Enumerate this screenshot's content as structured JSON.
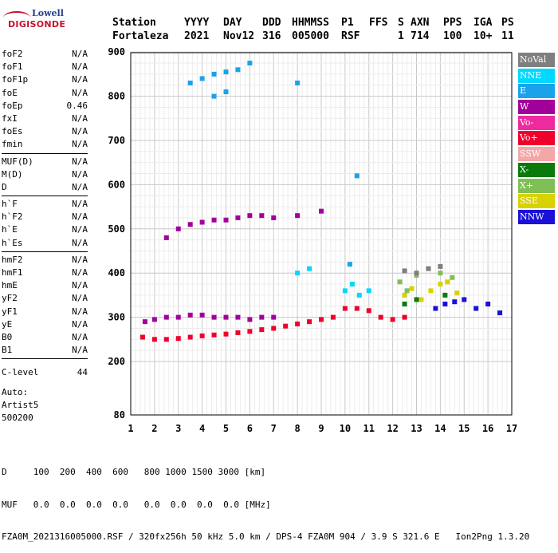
{
  "logo": {
    "line1": "Lowell",
    "line2": "DIGISONDE"
  },
  "header": {
    "row1": [
      "Station",
      "YYYY",
      "DAY",
      "DDD",
      "HHMMSS",
      "P1",
      "FFS",
      "S",
      "AXN",
      "PPS",
      "IGA",
      "PS"
    ],
    "row2": [
      "Fortaleza",
      "2021",
      "Nov12",
      "316",
      "005000",
      "RSF",
      "",
      "1",
      "714",
      "100",
      "10+",
      "11"
    ]
  },
  "params": {
    "group1": [
      {
        "k": "foF2",
        "v": "N/A"
      },
      {
        "k": "foF1",
        "v": "N/A"
      },
      {
        "k": "foF1p",
        "v": "N/A"
      },
      {
        "k": "foE",
        "v": "N/A"
      },
      {
        "k": "foEp",
        "v": "0.46"
      },
      {
        "k": "fxI",
        "v": "N/A"
      },
      {
        "k": "foEs",
        "v": "N/A"
      },
      {
        "k": "fmin",
        "v": "N/A"
      }
    ],
    "group2": [
      {
        "k": "MUF(D)",
        "v": "N/A"
      },
      {
        "k": "M(D)",
        "v": "N/A"
      },
      {
        "k": "D",
        "v": "N/A"
      }
    ],
    "group3": [
      {
        "k": "h`F",
        "v": "N/A"
      },
      {
        "k": "h`F2",
        "v": "N/A"
      },
      {
        "k": "h`E",
        "v": "N/A"
      },
      {
        "k": "h`Es",
        "v": "N/A"
      }
    ],
    "group4": [
      {
        "k": "hmF2",
        "v": "N/A"
      },
      {
        "k": "hmF1",
        "v": "N/A"
      },
      {
        "k": "hmE",
        "v": "N/A"
      },
      {
        "k": "yF2",
        "v": "N/A"
      },
      {
        "k": "yF1",
        "v": "N/A"
      },
      {
        "k": "yE",
        "v": "N/A"
      },
      {
        "k": "B0",
        "v": "N/A"
      },
      {
        "k": "B1",
        "v": "N/A"
      }
    ],
    "clevel": {
      "k": "C-level",
      "v": "44"
    }
  },
  "auto": {
    "line1": "Auto:",
    "line2": "Artist5",
    "line3": "500200"
  },
  "legend": [
    {
      "label": "NoVal",
      "color": "#7f7f7f"
    },
    {
      "label": "NNE",
      "color": "#00d8ff"
    },
    {
      "label": "E",
      "color": "#1aa3ea"
    },
    {
      "label": "W",
      "color": "#a2009a"
    },
    {
      "label": "Vo-",
      "color": "#ee2aa0"
    },
    {
      "label": "Vo+",
      "color": "#f0002c"
    },
    {
      "label": "SSW",
      "color": "#f3a7a7"
    },
    {
      "label": "X-",
      "color": "#0b7a0b"
    },
    {
      "label": "X+",
      "color": "#7fbf55"
    },
    {
      "label": "SSE",
      "color": "#d8d200"
    },
    {
      "label": "NNW",
      "color": "#1a10d8"
    }
  ],
  "footer": {
    "line1": "D     100  200  400  600   800 1000 1500 3000 [km]",
    "line2": "MUF   0.0  0.0  0.0  0.0   0.0  0.0  0.0  0.0 [MHz]",
    "line3": "FZA0M_2021316005000.RSF / 320fx256h 50 kHz 5.0 km / DPS-4 FZA0M 904 / 3.9 S 321.6 E   Ion2Png 1.3.20"
  },
  "chart_data": {
    "type": "scatter",
    "title": "",
    "xlabel": "",
    "ylabel": "",
    "xlim": [
      1,
      17
    ],
    "ylim": [
      80,
      900
    ],
    "x_ticks": [
      1,
      2,
      3,
      4,
      5,
      6,
      7,
      8,
      9,
      10,
      11,
      12,
      13,
      14,
      15,
      16,
      17
    ],
    "y_ticks": [
      80,
      200,
      300,
      400,
      500,
      600,
      700,
      800,
      900
    ],
    "grid": true,
    "legend_position": "right",
    "series": [
      {
        "name": "Vo+",
        "x": [
          1.5,
          2.0,
          2.5,
          3.0,
          3.5,
          4.0,
          4.5,
          5.0,
          5.5,
          6.0,
          6.5,
          7.0,
          7.5,
          8.0,
          8.5,
          9.0,
          9.5,
          10.0,
          10.5,
          11.0,
          11.5,
          12.0,
          12.5
        ],
        "y": [
          255,
          250,
          250,
          252,
          255,
          258,
          260,
          262,
          265,
          268,
          272,
          275,
          280,
          285,
          290,
          295,
          300,
          320,
          320,
          315,
          300,
          295,
          300
        ]
      },
      {
        "name": "W",
        "x": [
          1.6,
          2.0,
          2.5,
          3.0,
          3.5,
          4.0,
          4.5,
          5.0,
          5.5,
          6.0,
          6.5,
          7.0,
          2.5,
          3.0,
          3.5,
          4.0,
          4.5,
          5.0,
          5.5,
          6.0,
          6.5,
          7.0,
          8.0,
          9.0
        ],
        "y": [
          290,
          295,
          300,
          300,
          305,
          305,
          300,
          300,
          300,
          295,
          300,
          300,
          480,
          500,
          510,
          515,
          520,
          520,
          525,
          530,
          530,
          525,
          530,
          540
        ]
      },
      {
        "name": "E",
        "x": [
          3.5,
          4.0,
          4.5,
          5.0,
          5.5,
          6.0,
          4.5,
          5.0,
          8.0,
          10.2,
          10.5
        ],
        "y": [
          830,
          840,
          850,
          855,
          860,
          875,
          800,
          810,
          830,
          420,
          620
        ]
      },
      {
        "name": "NNE",
        "x": [
          10.0,
          10.3,
          10.6,
          11.0,
          8.0,
          8.5
        ],
        "y": [
          360,
          375,
          350,
          360,
          400,
          410
        ]
      },
      {
        "name": "SSE",
        "x": [
          12.5,
          12.8,
          13.2,
          13.6,
          14.0,
          14.3,
          14.7
        ],
        "y": [
          350,
          365,
          340,
          360,
          375,
          380,
          355
        ]
      },
      {
        "name": "NNW",
        "x": [
          13.8,
          14.2,
          14.6,
          15.0,
          15.5,
          16.0,
          16.5
        ],
        "y": [
          320,
          330,
          335,
          340,
          320,
          330,
          310
        ]
      },
      {
        "name": "X+",
        "x": [
          12.3,
          12.6,
          13.0,
          14.0,
          14.5
        ],
        "y": [
          380,
          360,
          395,
          400,
          390
        ]
      },
      {
        "name": "X-",
        "x": [
          12.5,
          13.0,
          14.2
        ],
        "y": [
          330,
          340,
          350
        ]
      },
      {
        "name": "NoVal",
        "x": [
          12.5,
          13.0,
          13.5,
          14.0
        ],
        "y": [
          405,
          400,
          410,
          415
        ]
      }
    ]
  }
}
